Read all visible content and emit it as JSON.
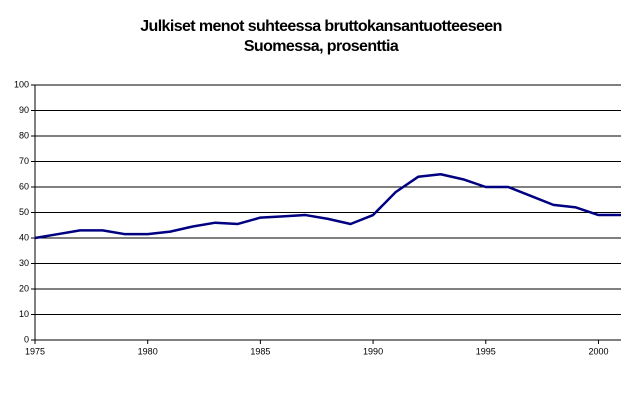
{
  "chart_data": {
    "type": "line",
    "title": [
      "Julkiset menot suhteessa bruttokansantuotteeseen",
      "Suomessa, prosenttia"
    ],
    "x": [
      1975,
      1976,
      1977,
      1978,
      1979,
      1980,
      1981,
      1982,
      1983,
      1984,
      1985,
      1986,
      1987,
      1988,
      1989,
      1990,
      1991,
      1992,
      1993,
      1994,
      1995,
      1996,
      1997,
      1998,
      1999,
      2000,
      2001
    ],
    "series": [
      {
        "name": null,
        "color": "#000080",
        "values": [
          40,
          41.5,
          43,
          43,
          41.5,
          41.5,
          42.5,
          44.5,
          46,
          45.5,
          48,
          48.5,
          49,
          47.5,
          45.5,
          49,
          58,
          64,
          65,
          63,
          60,
          60,
          56.5,
          53,
          52,
          49,
          49
        ]
      }
    ],
    "xlim": [
      1975,
      2001
    ],
    "xticks": [
      1975,
      1980,
      1985,
      1990,
      1995,
      2000
    ],
    "ylim": [
      0,
      100
    ],
    "yticks": [
      0,
      10,
      20,
      30,
      40,
      50,
      60,
      70,
      80,
      90,
      100
    ],
    "grid": true
  }
}
